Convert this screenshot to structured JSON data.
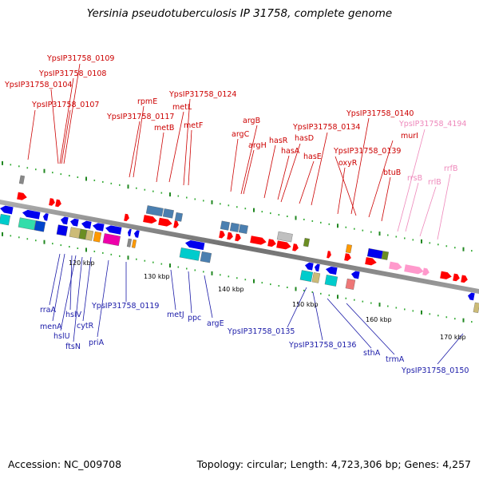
{
  "title": "Yersinia pseudotuberculosis IP 31758, complete genome",
  "footer": {
    "accession": "Accession: NC_009708",
    "summary": "Topology: circular; Length: 4,723,306 bp; Genes: 4,257"
  },
  "colors": {
    "backbone": "#808080",
    "forward_label": "#cc0000",
    "reverse_label": "#1a1aa8",
    "rna_label": "#ee88bb",
    "forward_gene": "#ff0000",
    "reverse_gene": "#0000ee",
    "rna_gene": "#ff99cc"
  },
  "tick_labels": [
    "120 kbp",
    "130 kbp",
    "140 kbp",
    "150 kbp",
    "160 kbp",
    "170 kbp"
  ],
  "forward_labels": [
    "YpsIP31758_0109",
    "YpsIP31758_0108",
    "YpsIP31758_0104",
    "YpsIP31758_0107",
    "rpmE",
    "YpsIP31758_0124",
    "metL",
    "YpsIP31758_0117",
    "metF",
    "metB",
    "argB",
    "argC",
    "argH",
    "hasR",
    "hasD",
    "YpsIP31758_0134",
    "hasA",
    "hasE",
    "YpsIP31758_0140",
    "murI",
    "YpsIP31758_0139",
    "oxyR",
    "btuB"
  ],
  "rna_labels": [
    "YpsIP31758_4194",
    "rrsB",
    "rrlB",
    "rrfB"
  ],
  "reverse_labels": [
    "rraA",
    "menA",
    "hslV",
    "hslU",
    "ftsN",
    "cytR",
    "priA",
    "YpsIP31758_0119",
    "metJ",
    "ppc",
    "argE",
    "YpsIP31758_0135",
    "YpsIP31758_0136",
    "sthA",
    "trmA",
    "YpsIP31758_0150"
  ]
}
